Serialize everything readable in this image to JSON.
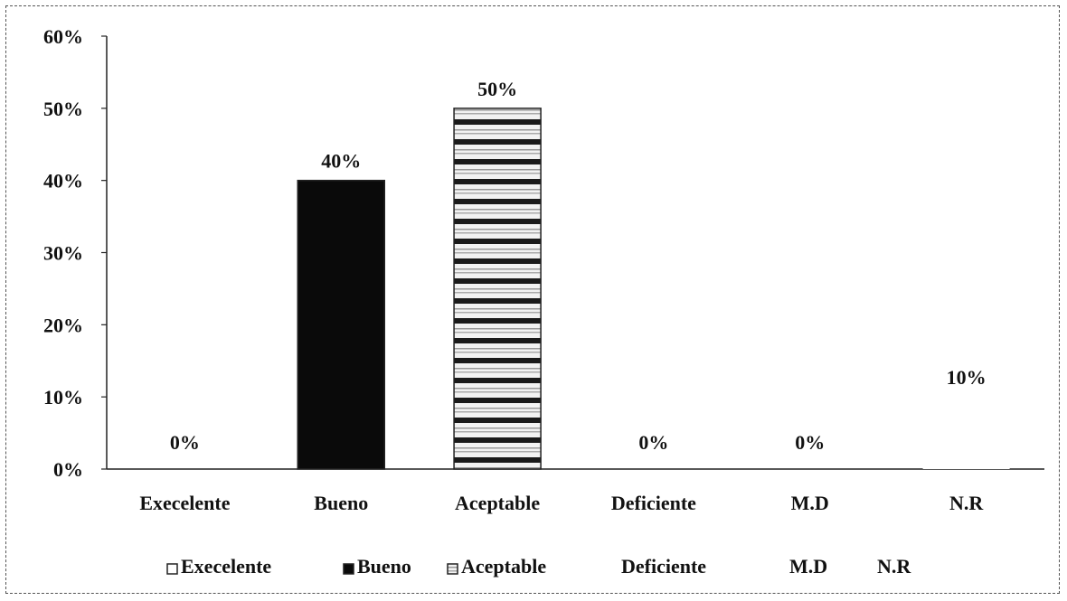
{
  "chart_data": {
    "type": "bar",
    "categories": [
      "Execelente",
      "Bueno",
      "Aceptable",
      "Deficiente",
      "M.D",
      "N.R"
    ],
    "values": [
      0,
      40,
      50,
      0,
      0,
      10
    ],
    "data_labels": [
      "0%",
      "40%",
      "50%",
      "0%",
      "0%",
      "10%"
    ],
    "ylim": [
      0,
      60
    ],
    "yticks": [
      0,
      10,
      20,
      30,
      40,
      50,
      60
    ],
    "ytick_labels": [
      "0%",
      "10%",
      "20%",
      "30%",
      "40%",
      "50%",
      "60%"
    ],
    "title": "",
    "xlabel": "",
    "ylabel": "",
    "grid": false,
    "legend": {
      "placement": "bottom",
      "entries": [
        "Execelente",
        "Bueno",
        "Aceptable",
        "Deficiente",
        "M.D",
        "N.R"
      ]
    },
    "fills": [
      "#ffffff",
      "#0a0a0a",
      "striped",
      "#ffffff",
      "#ffffff",
      "#ffffff"
    ]
  }
}
